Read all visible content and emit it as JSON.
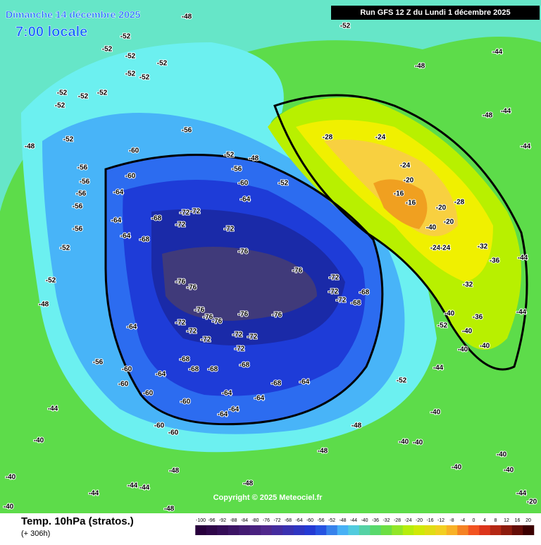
{
  "header": {
    "date": "Dimanche 14 décembre 2025",
    "time": "7:00 locale",
    "run": "Run GFS 12 Z du Lundi 1 décembre 2025"
  },
  "footer": {
    "title": "Temp. 10hPa (stratos.)",
    "lead": "(+ 306h)",
    "copyright": "Copyright © 2025 Meteociel.fr"
  },
  "colorbar": {
    "ticks": [
      -100,
      -96,
      -92,
      -88,
      -84,
      -80,
      -76,
      -72,
      -68,
      -64,
      -60,
      -56,
      -52,
      -48,
      -44,
      -40,
      -36,
      -32,
      -28,
      -24,
      -20,
      -16,
      -12,
      -8,
      -4,
      0,
      4,
      8,
      12,
      16,
      20
    ]
  },
  "contour_labels": [
    -48,
    -52,
    -52,
    -52,
    -52,
    -52,
    -52,
    -52,
    -52,
    -52,
    -52,
    -52,
    -48,
    -56,
    -56,
    -56,
    -56,
    -56,
    -56,
    -52,
    -52,
    -48,
    -60,
    -60,
    -64,
    -64,
    -64,
    -68,
    -68,
    -72,
    -72,
    -72,
    -72,
    -64,
    -60,
    -56,
    -52,
    -52,
    -48,
    -76,
    -76,
    -76,
    -76,
    -72,
    -72,
    -72,
    -68,
    -68,
    -76,
    -76,
    -76,
    -76,
    -76,
    -72,
    -72,
    -72,
    -72,
    -72,
    -72,
    -68,
    -68,
    -68,
    -68,
    -68,
    -64,
    -64,
    -64,
    -64,
    -64,
    -64,
    -60,
    -60,
    -60,
    -60,
    -60,
    -60,
    -64,
    -56,
    -52,
    -48,
    -48,
    -48,
    -48,
    -48,
    -44,
    -44,
    -40,
    -40,
    -40,
    -44,
    -44,
    -28,
    -24,
    -24,
    -20,
    -16,
    -16,
    -20,
    -28,
    -20,
    -24,
    -24,
    -32,
    -32,
    -36,
    -40,
    -40,
    -36,
    -44,
    -44,
    -44,
    -48,
    -48,
    -44,
    -44,
    -40,
    -40,
    -44,
    -40,
    -40,
    -40,
    -40,
    -40,
    -40,
    -44,
    -20,
    -40,
    -52,
    -52
  ]
}
